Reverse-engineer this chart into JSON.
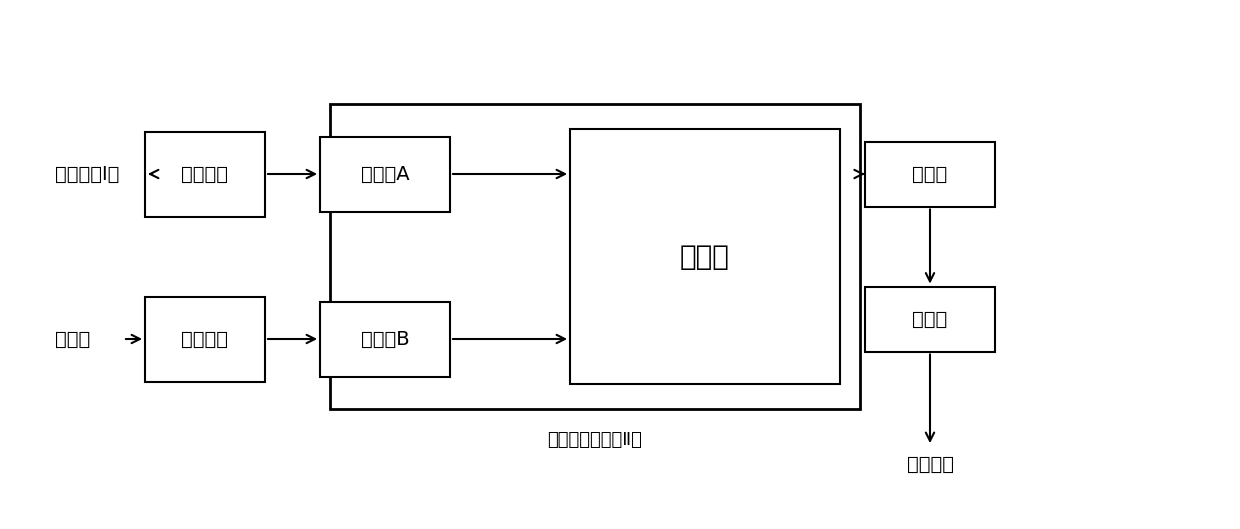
{
  "bg_color": "#ffffff",
  "text_color": "#000000",
  "box_edge_color": "#000000",
  "labels": {
    "compound": "化合物（Ⅰ）",
    "oxidant": "氧化剂",
    "pump1": "计量泵区",
    "pump2": "计量泵区",
    "preheat_a": "预热区A",
    "preheat_b": "预热区B",
    "reaction": "反应区",
    "quench": "淬灭区",
    "crystal": "结晶区",
    "product": "丙硫菌唑",
    "reactor_label": "微通道反应器（Ⅱ）"
  },
  "font_size_box": 14,
  "font_size_label": 14,
  "font_size_small": 12,
  "font_size_reactor_label": 13
}
